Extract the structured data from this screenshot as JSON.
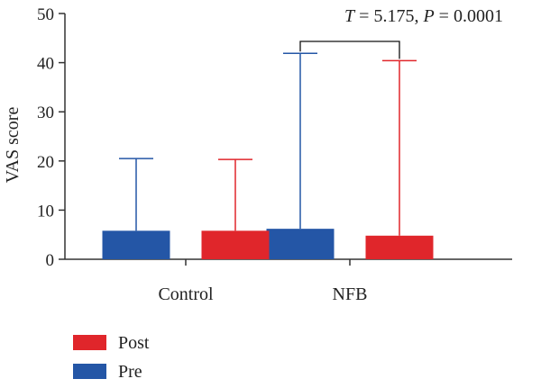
{
  "chart_data": {
    "type": "bar",
    "categories": [
      "Control",
      "NFB"
    ],
    "series": [
      {
        "name": "Pre",
        "color": "#2456a6",
        "values": [
          5.8,
          6.2
        ],
        "error_upper": [
          20.5,
          41.9
        ]
      },
      {
        "name": "Post",
        "color": "#e0262b",
        "values": [
          5.8,
          4.8
        ],
        "error_upper": [
          20.3,
          40.4
        ]
      }
    ],
    "ylabel": "VAS score",
    "ylim": [
      0,
      50
    ],
    "yticks": [
      0,
      10,
      20,
      30,
      40,
      50
    ],
    "legend": {
      "position": "bottom-left",
      "order": [
        "Post",
        "Pre"
      ]
    },
    "annotation": {
      "category": "NFB",
      "t_symbol": "T",
      "t_value": " = 5.175, ",
      "p_symbol": "P",
      "p_value": " = 0.0001"
    }
  }
}
